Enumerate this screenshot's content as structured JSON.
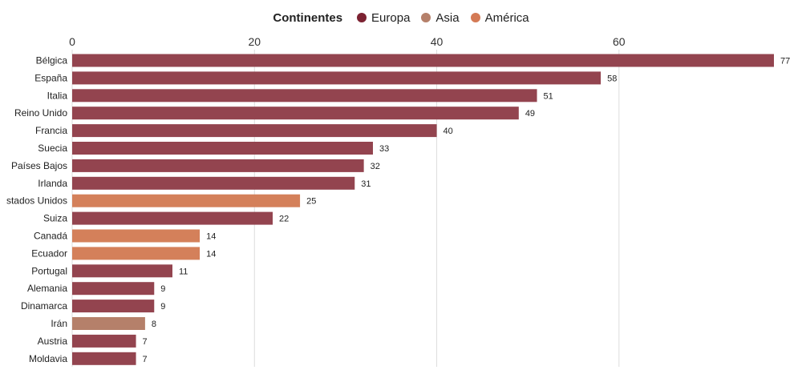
{
  "legend": {
    "title": "Continentes",
    "items": [
      {
        "name": "Europa",
        "color": "#7c2232"
      },
      {
        "name": "Asia",
        "color": "#b5806a"
      },
      {
        "name": "América",
        "color": "#d47a55"
      }
    ]
  },
  "colors": {
    "Europa": "#93444f",
    "Asia": "#b5806a",
    "América": "#d4805a",
    "grid": "#dddddd"
  },
  "chart_data": {
    "type": "bar",
    "orientation": "horizontal",
    "title": "",
    "xlabel": "",
    "ylabel": "",
    "xlim": [
      0,
      77
    ],
    "x_ticks": [
      0,
      20,
      40,
      60
    ],
    "x_axis_position": "top",
    "grid": true,
    "legend_position": "top-center",
    "categories": [
      "Bélgica",
      "España",
      "Italia",
      "Reino Unido",
      "Francia",
      "Suecia",
      "Países Bajos",
      "Irlanda",
      "stados Unidos",
      "Suiza",
      "Canadá",
      "Ecuador",
      "Portugal",
      "Alemania",
      "Dinamarca",
      "Irán",
      "Austria",
      "Moldavia"
    ],
    "values": [
      77,
      58,
      51,
      49,
      40,
      33,
      32,
      31,
      25,
      22,
      14,
      14,
      11,
      9,
      9,
      8,
      7,
      7
    ],
    "continents": [
      "Europa",
      "Europa",
      "Europa",
      "Europa",
      "Europa",
      "Europa",
      "Europa",
      "Europa",
      "América",
      "Europa",
      "América",
      "América",
      "Europa",
      "Europa",
      "Europa",
      "Asia",
      "Europa",
      "Europa"
    ]
  }
}
